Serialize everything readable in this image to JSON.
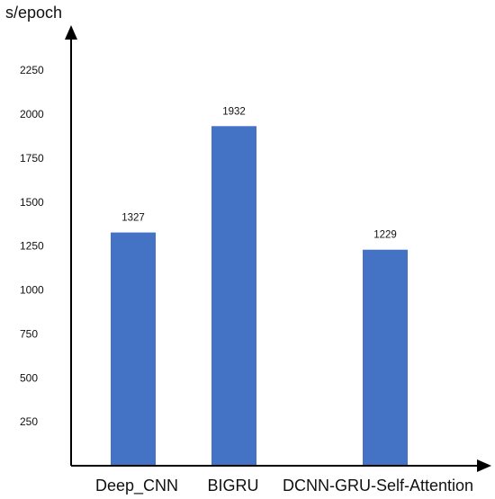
{
  "chart_data": {
    "type": "bar",
    "ylabel": "s/epoch",
    "categories": [
      "Deep_CNN",
      "BIGRU",
      "DCNN-GRU-Self-Attention"
    ],
    "values": [
      1327,
      1932,
      1229
    ],
    "data_labels": [
      "1327",
      "1932",
      "1229"
    ],
    "y_ticks": [
      250,
      500,
      750,
      1000,
      1250,
      1500,
      1750,
      2000,
      2250
    ],
    "ylim": [
      0,
      2500
    ],
    "grid": false,
    "bar_color": "#4472C4",
    "axis_color": "#000000"
  }
}
